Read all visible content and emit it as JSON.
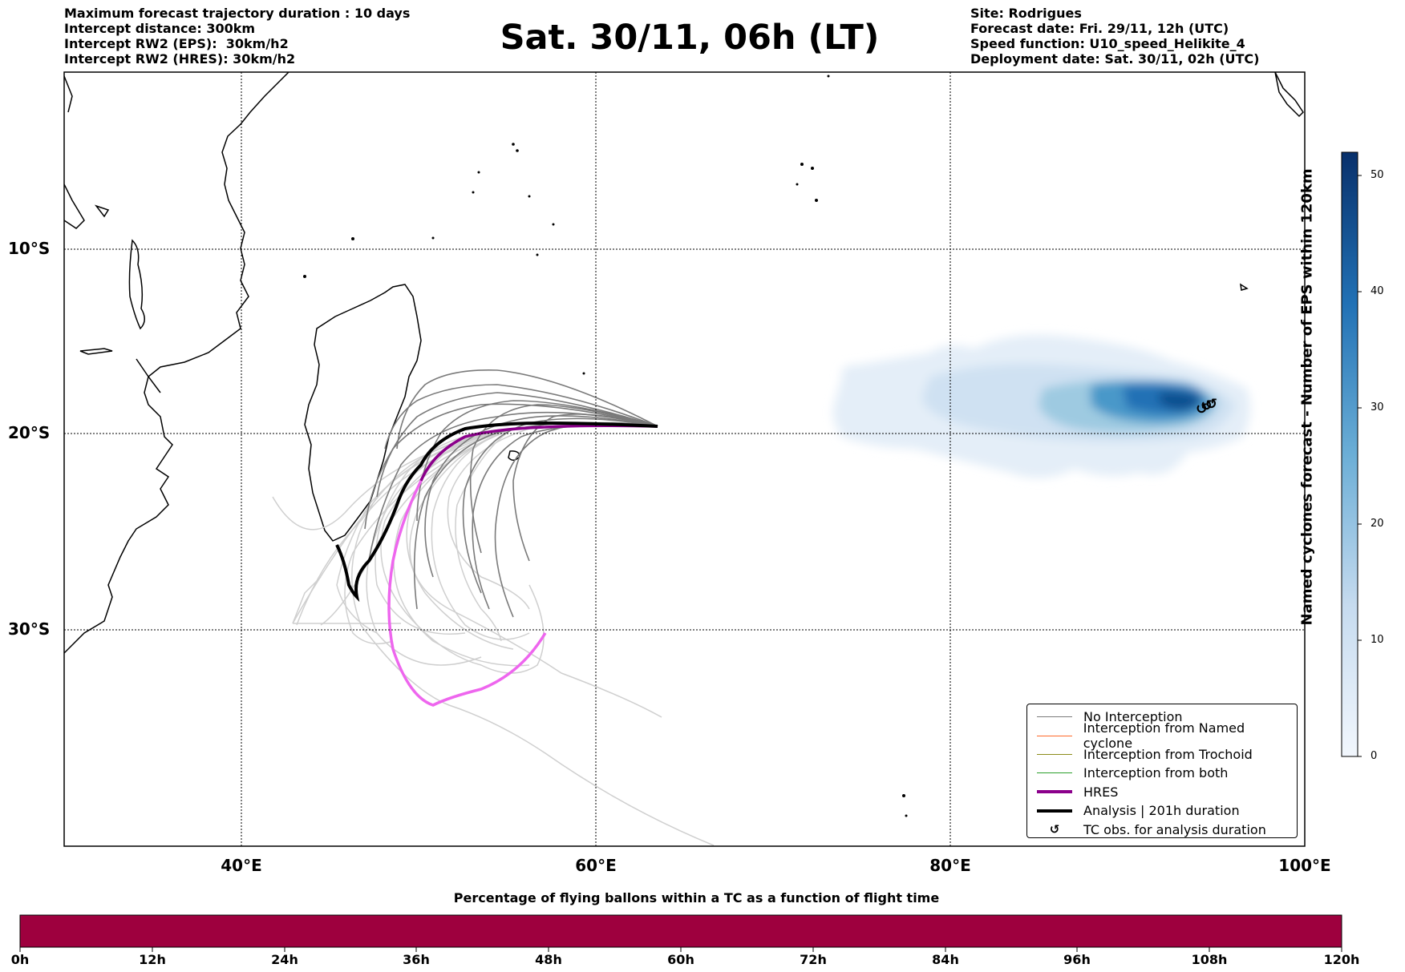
{
  "header": {
    "left_lines": [
      "Maximum forecast trajectory duration : 10 days",
      "Intercept distance: 300km",
      "Intercept RW2 (EPS):  30km/h2",
      "Intercept RW2 (HRES): 30km/h2"
    ],
    "title": "Sat. 30/11, 06h (LT)",
    "right_lines": [
      "Site: Rodrigues",
      "Forecast date: Fri. 29/11, 12h (UTC)",
      "Speed function: U10_speed_Helikite_4",
      "Deployment date: Sat. 30/11, 02h (UTC)"
    ]
  },
  "map": {
    "lat_labels": [
      "10°S",
      "20°S",
      "30°S"
    ],
    "lon_labels": [
      "40°E",
      "60°E",
      "80°E",
      "100°E"
    ],
    "lon_range": [
      30,
      100
    ],
    "lat_range": [
      -43,
      1
    ],
    "colors": {
      "no_interception": "#7a7a7a",
      "named_cyclone": "#ff6a2a",
      "trochoid": "#8c8c1a",
      "both": "#2ca02c",
      "hres": "#8b008b",
      "hres_light": "#ee66ee",
      "analysis": "#000000",
      "ensemble_light": "#cfcfcf",
      "density": "#2b7bba"
    }
  },
  "legend": {
    "items": [
      {
        "label": "No Interception",
        "color": "#7a7a7a",
        "width": 1
      },
      {
        "label": "Interception from Named cyclone",
        "color": "#ff6a2a",
        "width": 1
      },
      {
        "label": "Interception from Trochoid",
        "color": "#8c8c1a",
        "width": 1
      },
      {
        "label": "Interception from both",
        "color": "#2ca02c",
        "width": 1
      },
      {
        "label": "HRES",
        "color": "#8b008b",
        "width": 3
      },
      {
        "label": "Analysis | 201h duration",
        "color": "#000000",
        "width": 3
      }
    ],
    "symbol_item": {
      "label": "TC obs. for analysis duration",
      "icon": "cyclone-symbol-icon",
      "glyph": "↺"
    }
  },
  "colorbar": {
    "label": "Named cyclones forecast - Number of EPS within 120km",
    "ticks": [
      "0",
      "10",
      "20",
      "30",
      "40",
      "50"
    ],
    "range": [
      0,
      52
    ]
  },
  "bottom_bar": {
    "title": "Percentage of flying ballons within a TC as a function of flight time",
    "color": "#9e003e",
    "ticks": [
      "0h",
      "12h",
      "24h",
      "36h",
      "48h",
      "60h",
      "72h",
      "84h",
      "96h",
      "108h",
      "120h"
    ]
  }
}
